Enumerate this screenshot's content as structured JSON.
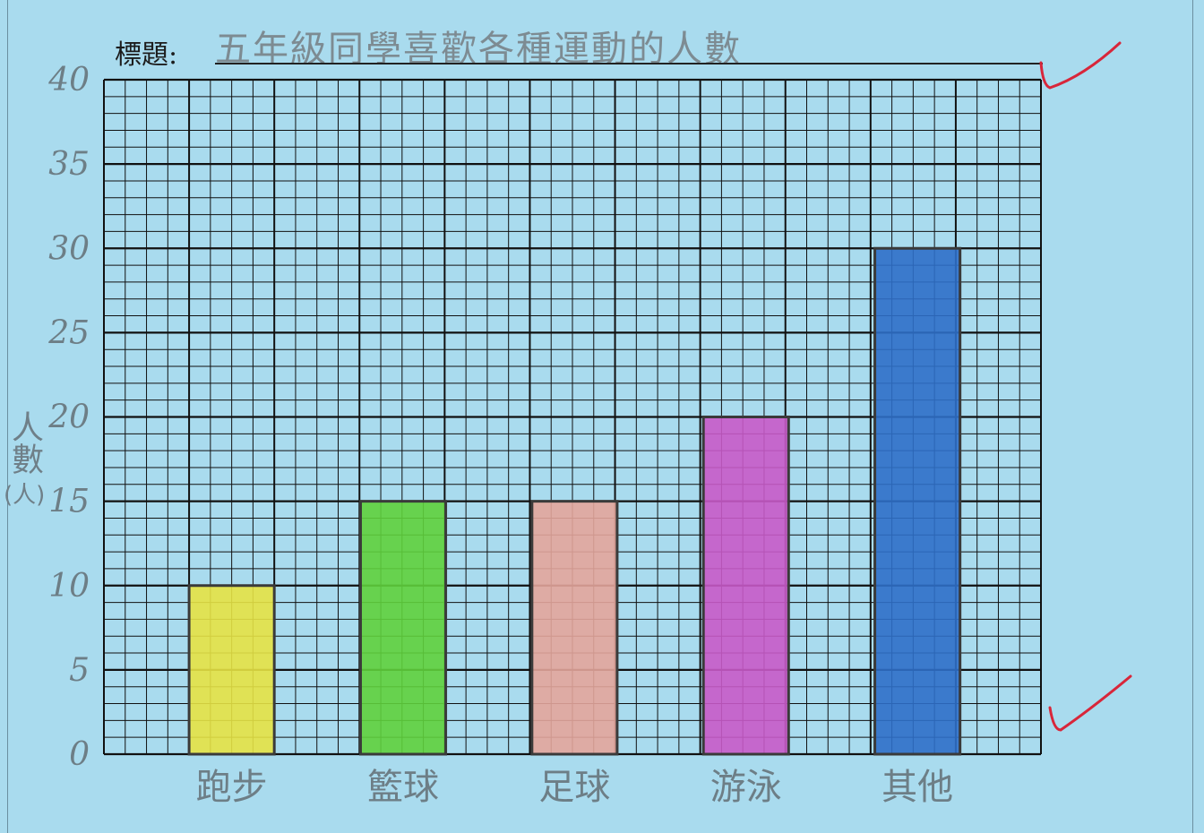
{
  "chart_data": {
    "type": "bar",
    "title_prefix": "標題:",
    "title": "五年級同學喜歡各種運動的人數",
    "ylabel": "人數",
    "ylabel_unit": "(人)",
    "categories": [
      "跑步",
      "籃球",
      "足球",
      "游泳",
      "其他"
    ],
    "values": [
      10,
      15,
      15,
      20,
      30
    ],
    "colors": [
      "#e6e244",
      "#5fd03c",
      "#e3a59b",
      "#c85ac8",
      "#2f6fc8"
    ],
    "ylim": [
      0,
      40
    ],
    "yticks": [
      "0",
      "5",
      "10",
      "15",
      "20",
      "25",
      "30",
      "35",
      "40"
    ],
    "grid": true
  },
  "annotations": {
    "check_color": "#d8263a"
  }
}
